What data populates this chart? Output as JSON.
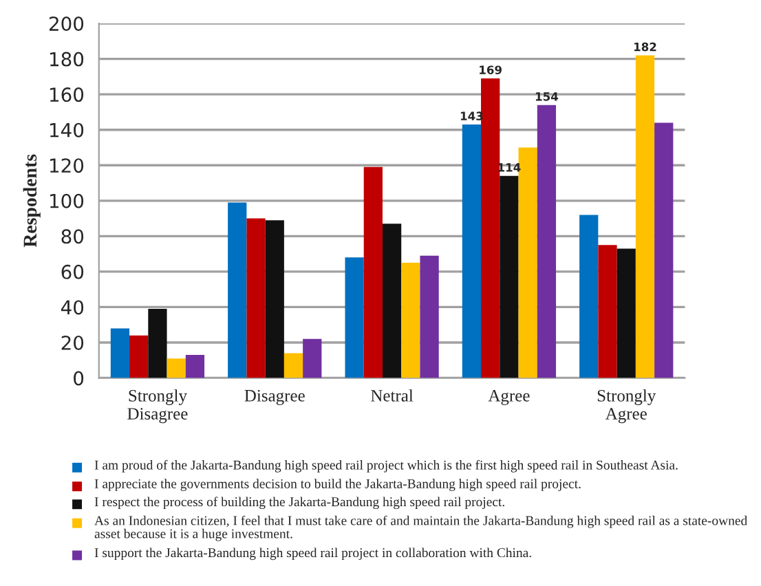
{
  "chart_data": {
    "type": "bar",
    "ylabel": "Respodents",
    "categories": [
      "Strongly\nDisagree",
      "Disagree",
      "Netral",
      "Agree",
      "Strongly\nAgree"
    ],
    "series": [
      {
        "name": "I am proud of the Jakarta-Bandung high speed rail project which is the first high speed rail in Southeast Asia.",
        "color": "#0070c0",
        "values": [
          28,
          99,
          68,
          143,
          92
        ],
        "value_labels": [
          null,
          null,
          null,
          "143",
          null
        ]
      },
      {
        "name": "I appreciate the governments decision to build the Jakarta-Bandung high speed rail project.",
        "color": "#c00000",
        "values": [
          24,
          90,
          119,
          169,
          75
        ],
        "value_labels": [
          null,
          null,
          null,
          "169",
          null
        ]
      },
      {
        "name": "I respect the process of building the Jakarta-Bandung high speed rail project.",
        "color": "#111111",
        "values": [
          39,
          89,
          87,
          114,
          73
        ],
        "value_labels": [
          null,
          null,
          null,
          "114",
          null
        ]
      },
      {
        "name": "As an Indonesian citizen, I feel that I must take care of and maintain the Jakarta-Bandung high speed rail as a state-owned asset because it is a huge investment.",
        "color": "#ffc000",
        "values": [
          11,
          14,
          65,
          130,
          182
        ],
        "value_labels": [
          null,
          null,
          null,
          null,
          "182"
        ]
      },
      {
        "name": "I support the Jakarta-Bandung high speed rail project in collaboration with China.",
        "color": "#7030a0",
        "values": [
          13,
          22,
          69,
          154,
          144
        ],
        "value_labels": [
          null,
          null,
          null,
          "154",
          null
        ]
      }
    ],
    "ylim": [
      0,
      200
    ],
    "yticks": [
      0,
      20,
      40,
      60,
      80,
      100,
      120,
      140,
      160,
      180,
      200
    ],
    "grid": "y",
    "legend": "bottom"
  }
}
